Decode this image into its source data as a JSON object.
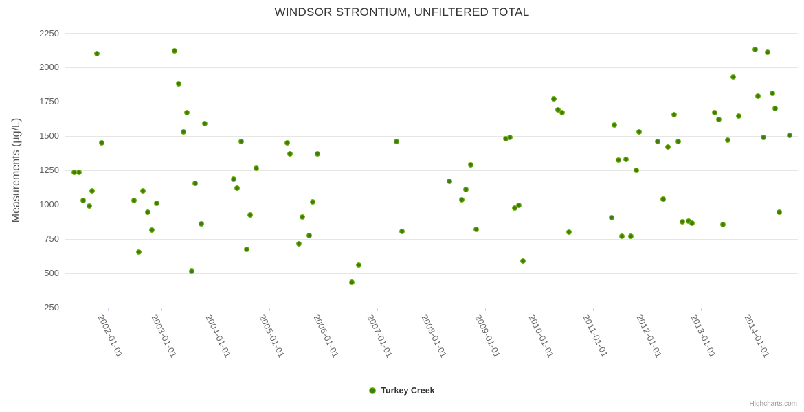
{
  "chart_data": {
    "type": "scatter",
    "title": "WINDSOR STRONTIUM, UNFILTERED TOTAL",
    "xlabel": "",
    "ylabel": "Measurements (µg/L)",
    "ylim": [
      250,
      2250
    ],
    "y_ticks": [
      250,
      500,
      750,
      1000,
      1250,
      1500,
      1750,
      2000,
      2250
    ],
    "x_ticks": [
      "2002-01-01",
      "2003-01-01",
      "2004-01-01",
      "2005-01-01",
      "2006-01-01",
      "2007-01-01",
      "2008-01-01",
      "2009-01-01",
      "2010-01-01",
      "2011-01-01",
      "2012-01-01",
      "2013-01-01",
      "2014-01-01"
    ],
    "grid": "horizontal-only",
    "legend_position": "bottom-center",
    "colors": {
      "marker_outer": "#84c313",
      "marker_center": "#3c7d0e",
      "gridline": "#e6e6e6",
      "axis_line": "#ccd6eb",
      "title_text": "#333333",
      "label_text": "#666666",
      "credit_text": "#999999"
    },
    "series": [
      {
        "name": "Turkey Creek",
        "points": [
          [
            "2001-05-15",
            1235
          ],
          [
            "2001-06-18",
            1235
          ],
          [
            "2001-07-18",
            1030
          ],
          [
            "2001-08-29",
            990
          ],
          [
            "2001-09-14",
            1100
          ],
          [
            "2001-10-17",
            2100
          ],
          [
            "2001-11-20",
            1450
          ],
          [
            "2002-06-26",
            1030
          ],
          [
            "2002-07-28",
            655
          ],
          [
            "2002-08-26",
            1100
          ],
          [
            "2002-09-28",
            945
          ],
          [
            "2002-10-24",
            815
          ],
          [
            "2002-11-26",
            1010
          ],
          [
            "2003-03-27",
            2120
          ],
          [
            "2003-04-25",
            1880
          ],
          [
            "2003-05-24",
            1530
          ],
          [
            "2003-06-18",
            1670
          ],
          [
            "2003-07-20",
            515
          ],
          [
            "2003-08-16",
            1155
          ],
          [
            "2003-09-24",
            860
          ],
          [
            "2003-10-20",
            1590
          ],
          [
            "2004-05-03",
            1185
          ],
          [
            "2004-05-26",
            1120
          ],
          [
            "2004-06-22",
            1460
          ],
          [
            "2004-07-29",
            675
          ],
          [
            "2004-08-21",
            925
          ],
          [
            "2004-10-02",
            1265
          ],
          [
            "2005-04-30",
            1450
          ],
          [
            "2005-05-19",
            1370
          ],
          [
            "2005-07-17",
            715
          ],
          [
            "2005-08-12",
            910
          ],
          [
            "2005-09-25",
            775
          ],
          [
            "2005-10-17",
            1020
          ],
          [
            "2005-11-20",
            1370
          ],
          [
            "2006-07-12",
            435
          ],
          [
            "2006-08-28",
            560
          ],
          [
            "2007-05-09",
            1460
          ],
          [
            "2007-06-17",
            805
          ],
          [
            "2008-05-02",
            1170
          ],
          [
            "2008-07-25",
            1035
          ],
          [
            "2008-08-22",
            1110
          ],
          [
            "2008-09-24",
            1290
          ],
          [
            "2008-11-01",
            820
          ],
          [
            "2009-05-18",
            1480
          ],
          [
            "2009-06-18",
            1490
          ],
          [
            "2009-07-19",
            975
          ],
          [
            "2009-08-14",
            995
          ],
          [
            "2009-09-16",
            590
          ],
          [
            "2010-04-10",
            1770
          ],
          [
            "2010-05-07",
            1690
          ],
          [
            "2010-06-05",
            1670
          ],
          [
            "2010-07-23",
            800
          ],
          [
            "2011-05-08",
            905
          ],
          [
            "2011-05-25",
            1580
          ],
          [
            "2011-06-20",
            1325
          ],
          [
            "2011-07-16",
            770
          ],
          [
            "2011-08-11",
            1330
          ],
          [
            "2011-09-13",
            770
          ],
          [
            "2011-10-20",
            1250
          ],
          [
            "2011-11-09",
            1530
          ],
          [
            "2012-03-15",
            1460
          ],
          [
            "2012-04-21",
            1040
          ],
          [
            "2012-05-24",
            1420
          ],
          [
            "2012-07-02",
            1655
          ],
          [
            "2012-08-01",
            1460
          ],
          [
            "2012-08-28",
            875
          ],
          [
            "2012-10-09",
            880
          ],
          [
            "2012-11-01",
            865
          ],
          [
            "2013-04-04",
            1670
          ],
          [
            "2013-05-03",
            1620
          ],
          [
            "2013-05-31",
            855
          ],
          [
            "2013-07-01",
            1470
          ],
          [
            "2013-08-10",
            1930
          ],
          [
            "2013-09-15",
            1645
          ],
          [
            "2014-01-04",
            2130
          ],
          [
            "2014-01-22",
            1790
          ],
          [
            "2014-03-02",
            1490
          ],
          [
            "2014-03-27",
            2110
          ],
          [
            "2014-05-02",
            1810
          ],
          [
            "2014-05-18",
            1700
          ],
          [
            "2014-06-17",
            945
          ],
          [
            "2014-08-27",
            1505
          ]
        ]
      }
    ]
  },
  "legend": {
    "items": [
      {
        "label": "Turkey Creek",
        "marker": "green-dot-icon"
      }
    ]
  },
  "credit": {
    "label": "Highcharts.com"
  }
}
